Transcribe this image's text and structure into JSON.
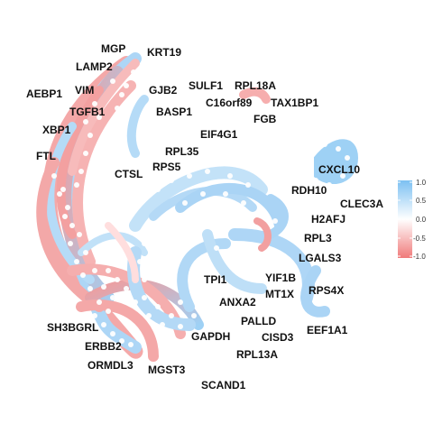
{
  "diagram": {
    "genes": [
      {
        "id": "mgp",
        "label": "MGP"
      },
      {
        "id": "krt19",
        "label": "KRT19"
      },
      {
        "id": "lamp2",
        "label": "LAMP2"
      },
      {
        "id": "aebp1",
        "label": "AEBP1"
      },
      {
        "id": "vim",
        "label": "VIM"
      },
      {
        "id": "gjb2",
        "label": "GJB2"
      },
      {
        "id": "sulf1",
        "label": "SULF1"
      },
      {
        "id": "rpl18a",
        "label": "RPL18A"
      },
      {
        "id": "tgfb1",
        "label": "TGFB1"
      },
      {
        "id": "basp1",
        "label": "BASP1"
      },
      {
        "id": "c16orf89",
        "label": "C16orf89"
      },
      {
        "id": "tax1bp1",
        "label": "TAX1BP1"
      },
      {
        "id": "fgb",
        "label": "FGB"
      },
      {
        "id": "xbp1",
        "label": "XBP1"
      },
      {
        "id": "eif4g1",
        "label": "EIF4G1"
      },
      {
        "id": "rpl35",
        "label": "RPL35"
      },
      {
        "id": "ftl",
        "label": "FTL"
      },
      {
        "id": "rps5",
        "label": "RPS5"
      },
      {
        "id": "ctsl",
        "label": "CTSL"
      },
      {
        "id": "cxcl10",
        "label": "CXCL10"
      },
      {
        "id": "rdh10",
        "label": "RDH10"
      },
      {
        "id": "clec3a",
        "label": "CLEC3A"
      },
      {
        "id": "h2afj",
        "label": "H2AFJ"
      },
      {
        "id": "rpl3",
        "label": "RPL3"
      },
      {
        "id": "lgals3",
        "label": "LGALS3"
      },
      {
        "id": "tpi1",
        "label": "TPI1"
      },
      {
        "id": "yif1b",
        "label": "YIF1B"
      },
      {
        "id": "mt1x",
        "label": "MT1X"
      },
      {
        "id": "rps4x",
        "label": "RPS4X"
      },
      {
        "id": "anxa2",
        "label": "ANXA2"
      },
      {
        "id": "palld",
        "label": "PALLD"
      },
      {
        "id": "sh3bgrl",
        "label": "SH3BGRL"
      },
      {
        "id": "eef1a1",
        "label": "EEF1A1"
      },
      {
        "id": "cisd3",
        "label": "CISD3"
      },
      {
        "id": "gapdh",
        "label": "GAPDH"
      },
      {
        "id": "erbb2",
        "label": "ERBB2"
      },
      {
        "id": "rpl13a",
        "label": "RPL13A"
      },
      {
        "id": "ormdl3",
        "label": "ORMDL3"
      },
      {
        "id": "mgst3",
        "label": "MGST3"
      },
      {
        "id": "scand1",
        "label": "SCAND1"
      }
    ],
    "legend": {
      "ticks": [
        "1.0",
        "0.5",
        "0.0",
        "-0.5",
        "-1.0"
      ],
      "high_color": "#7cc0f2",
      "mid_color": "#ffffff",
      "low_color": "#f07a7a"
    }
  }
}
